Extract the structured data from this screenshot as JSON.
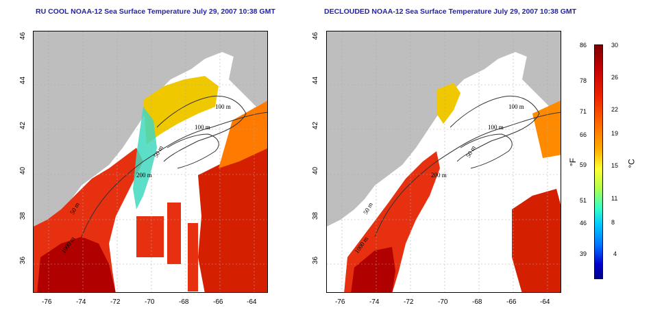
{
  "left_panel": {
    "title": "RU COOL NOAA-12 Sea Surface Temperature July 29, 2007 10:38 GMT",
    "contour_labels": [
      "100 m",
      "100 m",
      "50 m",
      "200 m",
      "50 m",
      "1000 m"
    ]
  },
  "right_panel": {
    "title": "DECLOUDED NOAA-12 Sea Surface Temperature July 29, 2007 10:38 GMT",
    "contour_labels": [
      "100 m",
      "100 m",
      "50 m",
      "200 m",
      "50 m",
      "1000 m"
    ]
  },
  "axes": {
    "lat_ticks": [
      "46",
      "44",
      "42",
      "40",
      "38",
      "36"
    ],
    "lon_ticks": [
      "-76",
      "-74",
      "-72",
      "-70",
      "-68",
      "-66",
      "-64"
    ]
  },
  "colorbar": {
    "fahrenheit_ticks": [
      "86",
      "78",
      "71",
      "66",
      "59",
      "51",
      "46",
      "39"
    ],
    "celsius_ticks": [
      "30",
      "26",
      "22",
      "19",
      "15",
      "11",
      "8",
      "4"
    ],
    "fahrenheit_unit": "°F",
    "celsius_unit": "°C"
  },
  "colors": {
    "land": "#bebebe",
    "no_data": "#ffffff",
    "warm_water": "#e83010",
    "hot_water": "#b00000",
    "cool_water": "#f5d800",
    "title_blue": "#2222aa"
  }
}
